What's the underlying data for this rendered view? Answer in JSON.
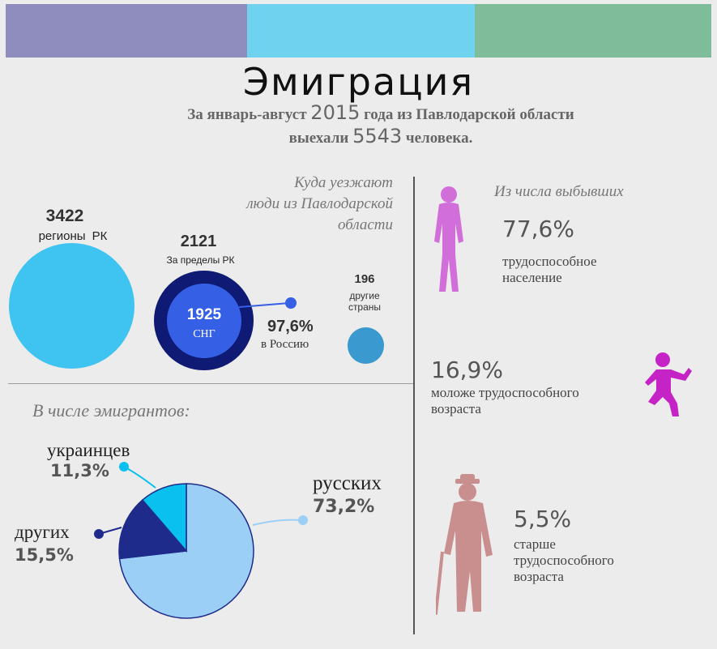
{
  "colors": {
    "bar1": "#8e8dbd",
    "bar2": "#6fd3f0",
    "bar3": "#7fbd9a",
    "big_circle": "#3fc4f1",
    "dark_ring": "#0e1a74",
    "cis": "#3560e6",
    "other": "#3a9ad0",
    "pink_person": "#d26ed9",
    "magenta_kid": "#c623c6",
    "old_man": "#c98f8f",
    "pie_russian": "#9ccff5",
    "pie_other": "#1f2b8a",
    "pie_ukr": "#09c0ef"
  },
  "header": {
    "title": "Эмиграция",
    "subtitle_pre": "За январь-август ",
    "year": "2015",
    "subtitle_mid": " года из Павлодарской области",
    "subtitle_pre2": "выехали ",
    "count": "5543",
    "subtitle_post": " человека."
  },
  "where": {
    "heading": [
      "Куда уезжают",
      "люди из Павлодарской",
      "области"
    ],
    "rk_value": "3422",
    "rk_label": "регионы РК",
    "abroad_value": "2121",
    "abroad_label": "За пределы РК",
    "cis_value": "1925",
    "cis_label": "СНГ",
    "russia_pct": "97,6%",
    "russia_label": "в Россию",
    "other_value": "196",
    "other_label": [
      "другие",
      "страны"
    ]
  },
  "leavers": {
    "heading": "Из числа выбывших",
    "working_pct": "77,6%",
    "working_label": [
      "трудоспособное",
      "население"
    ],
    "young_pct": "16,9%",
    "young_label": [
      "моложе трудоспособного",
      "возраста"
    ],
    "old_pct": "5,5%",
    "old_label": [
      "старше",
      "трудоспособного",
      "возраста"
    ]
  },
  "chart_data": {
    "type": "pie",
    "title": "В числе эмигрантов:",
    "slices": [
      {
        "label": "русских",
        "value": 73.2,
        "text": "73,2%",
        "color": "#9ccff5"
      },
      {
        "label": "других",
        "value": 15.5,
        "text": "15,5%",
        "color": "#1f2b8a"
      },
      {
        "label": "украинцев",
        "value": 11.3,
        "text": "11,3%",
        "color": "#09c0ef"
      }
    ]
  }
}
